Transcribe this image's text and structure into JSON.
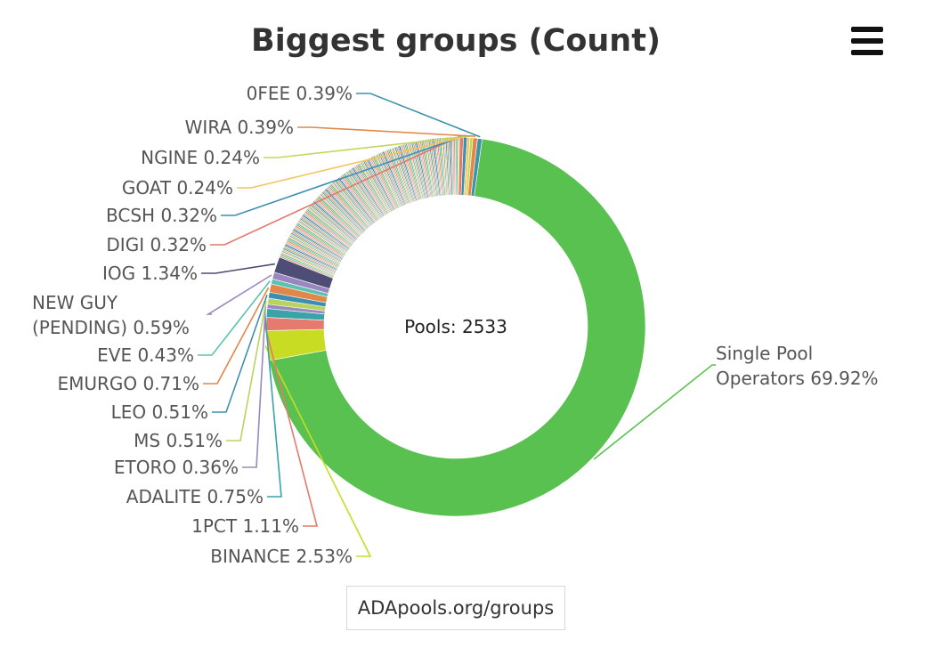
{
  "chart_data": {
    "type": "pie",
    "title": "Biggest groups (Count)",
    "center_label": "Pools: 2533",
    "labeled_slices": [
      {
        "label": "Single Pool Operators 69.92%",
        "name": "Single Pool Operators",
        "value": 69.92,
        "color": "#58c14f"
      },
      {
        "label": "BINANCE 2.53%",
        "name": "BINANCE",
        "value": 2.53,
        "color": "#c8dc24"
      },
      {
        "label": "1PCT 1.11%",
        "name": "1PCT",
        "value": 1.11,
        "color": "#e57a6e"
      },
      {
        "label": "ADALITE 0.75%",
        "name": "ADALITE",
        "value": 0.75,
        "color": "#3aa3a8"
      },
      {
        "label": "ETORO 0.36%",
        "name": "ETORO",
        "value": 0.36,
        "color": "#9a88c0"
      },
      {
        "label": "MS 0.51%",
        "name": "MS",
        "value": 0.51,
        "color": "#b9d35e"
      },
      {
        "label": "LEO 0.51%",
        "name": "LEO",
        "value": 0.51,
        "color": "#3d8fb2"
      },
      {
        "label": "EMURGO 0.71%",
        "name": "EMURGO",
        "value": 0.71,
        "color": "#e2874a"
      },
      {
        "label": "EVE 0.43%",
        "name": "EVE",
        "value": 0.43,
        "color": "#5cc2b0"
      },
      {
        "label": "NEW GUY (PENDING) 0.59%",
        "name": "NEW GUY (PENDING)",
        "value": 0.59,
        "color": "#9b86c2"
      },
      {
        "label": "IOG 1.34%",
        "name": "IOG",
        "value": 1.34,
        "color": "#4d4d75"
      },
      {
        "label": "DIGI 0.32%",
        "name": "DIGI",
        "value": 0.32,
        "color": "#e07a6a"
      },
      {
        "label": "BCSH 0.32%",
        "name": "BCSH",
        "value": 0.32,
        "color": "#3b8fb0"
      },
      {
        "label": "GOAT 0.24%",
        "name": "GOAT",
        "value": 0.24,
        "color": "#f5c45c"
      },
      {
        "label": "NGINE 0.24%",
        "name": "NGINE",
        "value": 0.24,
        "color": "#c4d65a"
      },
      {
        "label": "WIRA 0.39%",
        "name": "WIRA",
        "value": 0.39,
        "color": "#e2874a"
      },
      {
        "label": "0FEE 0.39%",
        "name": "0FEE",
        "value": 0.39,
        "color": "#3f93a8"
      }
    ],
    "other_slices_palette": [
      "#e57a6e",
      "#58c14f",
      "#3aa3a8",
      "#f5c45c",
      "#9a88c0",
      "#b9d35e",
      "#3d8fb2",
      "#e2874a",
      "#5cc2b0",
      "#4d4d75",
      "#7fb8d8",
      "#f09a6a"
    ]
  },
  "source_link": "ADApools.org/groups",
  "menu_icon": "hamburger-menu-icon"
}
